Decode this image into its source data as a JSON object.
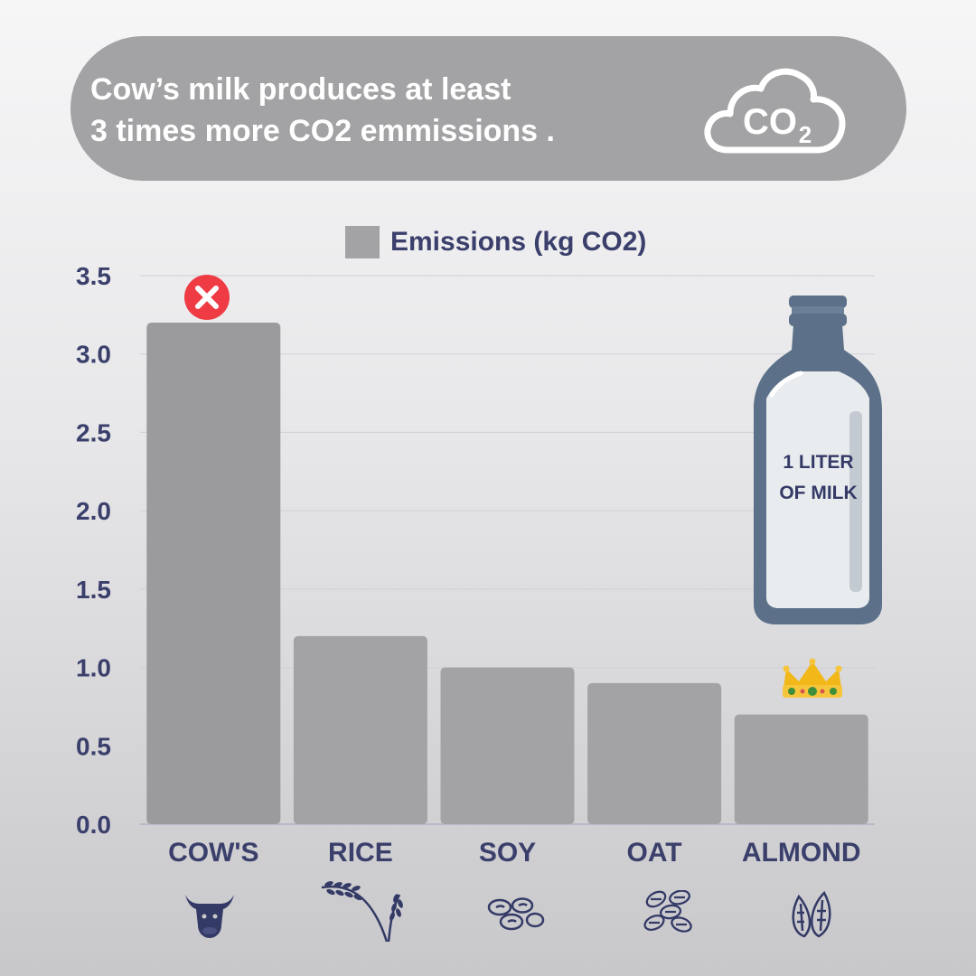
{
  "headline": {
    "line1": "Cow’s milk produces at least",
    "line2": "3 times more CO2 emmissions ."
  },
  "co2_icon": {
    "label_main": "CO",
    "label_sub": "2",
    "icon": "co2-cloud-icon"
  },
  "bottle": {
    "line1": "1 LITER",
    "line2": "OF MILK",
    "icon": "milk-bottle-icon"
  },
  "colors": {
    "bar": "#a3a3a5",
    "bar_dark": "#9b9b9d",
    "text_primary": "#3a3f6b",
    "cancel": "#ee3b44",
    "crown": "#f2b81a",
    "bottle": "#5c7189"
  },
  "chart_data": {
    "type": "bar",
    "title": "",
    "categories": [
      "COW'S",
      "RICE",
      "SOY",
      "OAT",
      "ALMOND"
    ],
    "series": [
      {
        "name": "Emissions (kg CO2)",
        "values": [
          3.2,
          1.2,
          1.0,
          0.9,
          0.7
        ]
      }
    ],
    "xlabel": "",
    "ylabel": "",
    "ylim": [
      0,
      3.5
    ],
    "yticks": [
      "0.0",
      "0.5",
      "1.0",
      "1.5",
      "2.0",
      "2.5",
      "3.0",
      "3.5"
    ],
    "grid": true,
    "legend": "top-center",
    "annotations": [
      {
        "category": "COW'S",
        "marker": "cancel-icon"
      },
      {
        "category": "ALMOND",
        "marker": "crown-icon"
      }
    ],
    "category_icons": [
      "cow-icon",
      "rice-icon",
      "soybean-icon",
      "oat-icon",
      "almond-icon"
    ]
  }
}
